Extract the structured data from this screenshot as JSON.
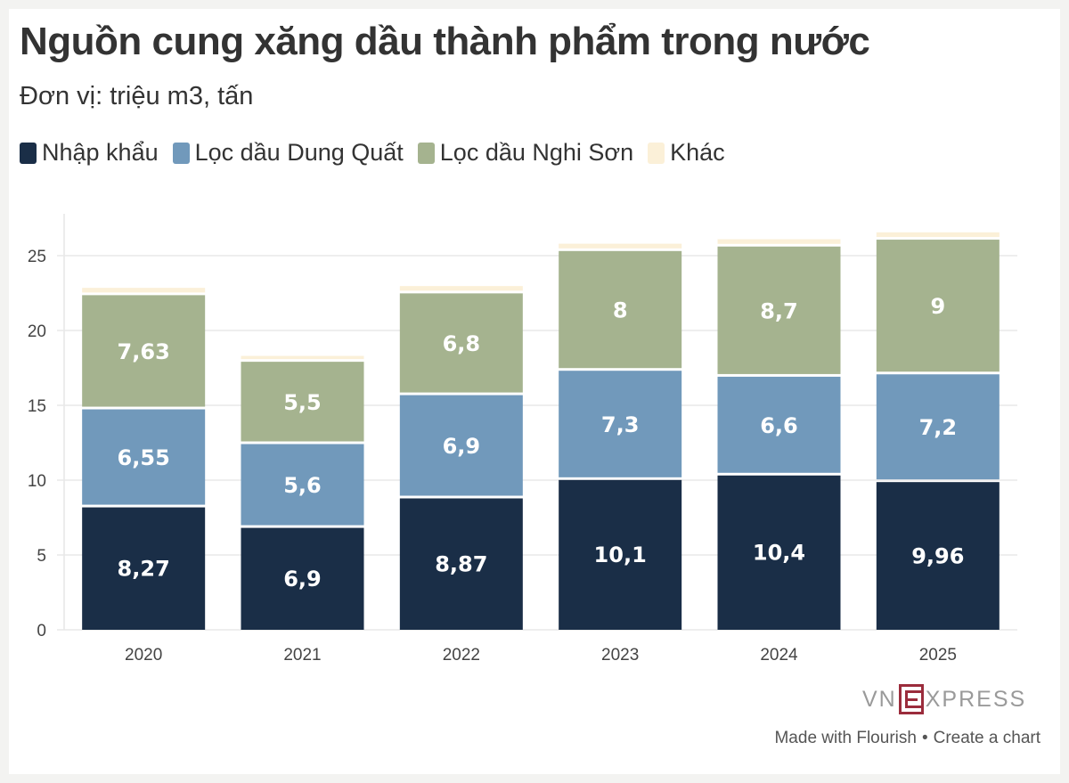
{
  "header": {
    "title": "Nguồn cung xăng dầu thành phẩm trong nước",
    "subtitle": "Đơn vị: triệu m3, tấn"
  },
  "footer": {
    "made_with": "Made with Flourish",
    "separator": "•",
    "create": "Create a chart"
  },
  "logo": {
    "left_text": "VN",
    "right_text": "XPRESS"
  },
  "chart_data": {
    "type": "bar",
    "stacked": true,
    "title": "Nguồn cung xăng dầu thành phẩm trong nước",
    "subtitle": "Đơn vị: triệu m3, tấn",
    "categories": [
      "2020",
      "2021",
      "2022",
      "2023",
      "2024",
      "2025"
    ],
    "series": [
      {
        "name": "Nhập khẩu",
        "color": "#1a2e47",
        "values": [
          8.27,
          6.9,
          8.87,
          10.1,
          10.4,
          9.96
        ],
        "labels": [
          "8,27",
          "6,9",
          "8,87",
          "10,1",
          "10,4",
          "9,96"
        ]
      },
      {
        "name": "Lọc dầu Dung Quất",
        "color": "#7199bb",
        "values": [
          6.55,
          5.6,
          6.9,
          7.3,
          6.6,
          7.2
        ],
        "labels": [
          "6,55",
          "5,6",
          "6,9",
          "7,3",
          "6,6",
          "7,2"
        ]
      },
      {
        "name": "Lọc dầu Nghi Sơn",
        "color": "#a5b38f",
        "values": [
          7.63,
          5.5,
          6.8,
          8,
          8.7,
          9
        ],
        "labels": [
          "7,63",
          "5,5",
          "6,8",
          "8",
          "8,7",
          "9"
        ]
      },
      {
        "name": "Khác",
        "color": "#fbf0d8",
        "values": [
          0.4,
          0.3,
          0.4,
          0.4,
          0.4,
          0.4
        ],
        "labels": [
          "",
          "",
          "",
          "",
          "",
          ""
        ]
      }
    ],
    "ylim": [
      0,
      27.8
    ],
    "yticks": [
      0,
      5,
      10,
      15,
      20,
      25
    ],
    "grid": true,
    "legend": "top-left"
  }
}
